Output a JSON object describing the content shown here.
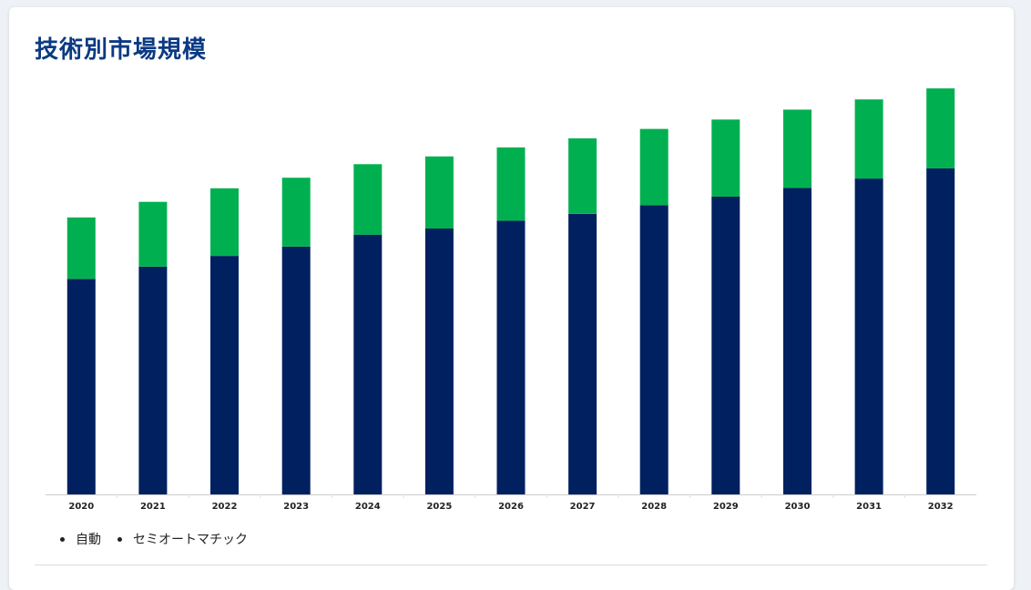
{
  "header": {
    "title": "技術別市場規模"
  },
  "colors": {
    "series_auto": "#002060",
    "series_semi": "#00b050",
    "title": "#0b3a82"
  },
  "legend": {
    "items": [
      "自動",
      "セミオートマチック"
    ]
  },
  "chart_data": {
    "type": "bar",
    "stacked": true,
    "title": "",
    "xlabel": "",
    "ylabel": "",
    "y_axis_visible": false,
    "grid": false,
    "legend_position": "bottom-left",
    "categories": [
      "2020",
      "2021",
      "2022",
      "2023",
      "2024",
      "2025",
      "2026",
      "2027",
      "2028",
      "2029",
      "2030",
      "2031",
      "2032"
    ],
    "ylim": [
      0,
      100
    ],
    "series": [
      {
        "name": "自動",
        "color": "#002060",
        "values": [
          52.6,
          55.6,
          58.2,
          60.5,
          63.4,
          64.9,
          66.8,
          68.5,
          70.6,
          72.7,
          74.8,
          77.1,
          79.6
        ]
      },
      {
        "name": "セミオートマチック",
        "color": "#00b050",
        "values": [
          15.0,
          15.8,
          16.5,
          16.8,
          17.2,
          17.6,
          17.9,
          18.4,
          18.6,
          18.8,
          19.1,
          19.3,
          19.5
        ]
      }
    ]
  }
}
